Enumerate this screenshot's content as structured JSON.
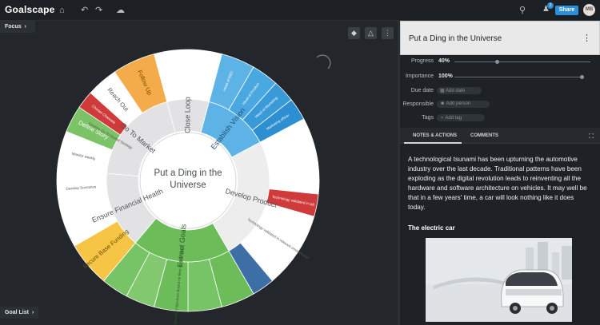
{
  "topbar": {
    "logo": "Goalscape",
    "share_label": "Share",
    "notification_count": "2",
    "avatar_initials": "MB"
  },
  "left": {
    "focus_label": "Focus",
    "goal_list_label": "Goal List"
  },
  "goal": {
    "title": "Put a Ding in the Universe",
    "progress_label": "Progress",
    "progress_value": "40%",
    "progress": 0.4,
    "importance_label": "Importance",
    "importance_value": "100%",
    "importance": 1.0,
    "due_label": "Due date",
    "due_placeholder": "Add date",
    "responsible_label": "Responsible",
    "responsible_placeholder": "Add person",
    "tags_label": "Tags",
    "tags_placeholder": "Add tag"
  },
  "tabs": {
    "notes": "NOTES & ACTIONS",
    "comments": "COMMENTS"
  },
  "notes": {
    "paragraph": "A technological tsunami has been upturning the automotive industry over the last decade. Traditional patterns have been exploding as the digital revolution leads to reinventing all the hardware and software architecture on vehicles. It may well be that in a few years' time, a car will look nothing like it does today.",
    "heading": "The electric car"
  },
  "chart_data": {
    "type": "sunburst",
    "center": "Put a Ding in the Universe",
    "main_goals": [
      {
        "name": "Close Loop",
        "color": "#e2e2e4"
      },
      {
        "name": "Establish Vision",
        "color": "#5db3e6"
      },
      {
        "name": "Develop Product",
        "color": "#ededee"
      },
      {
        "name": "Extract Goals",
        "color": "#6cbd5a"
      },
      {
        "name": "Ensure Financial Health",
        "color": "#e2e2e4"
      },
      {
        "name": "Go To Market",
        "color": "#e2e2e4"
      }
    ],
    "outer_labels": [
      "Head of R&D",
      "Head of Product",
      "Head of Marketing",
      "Marketing officer",
      "Technology validated in lab",
      "Technology validated in relevant environment",
      "Define Key Objectives Based on Best Current Ideas",
      "Secure Base Funding",
      "Develop Scenarios",
      "Monitor weekly",
      "Define Story",
      "Choose Channels",
      "Reach Out",
      "Follow Up",
      "Develop Go To Market Strategy"
    ]
  }
}
